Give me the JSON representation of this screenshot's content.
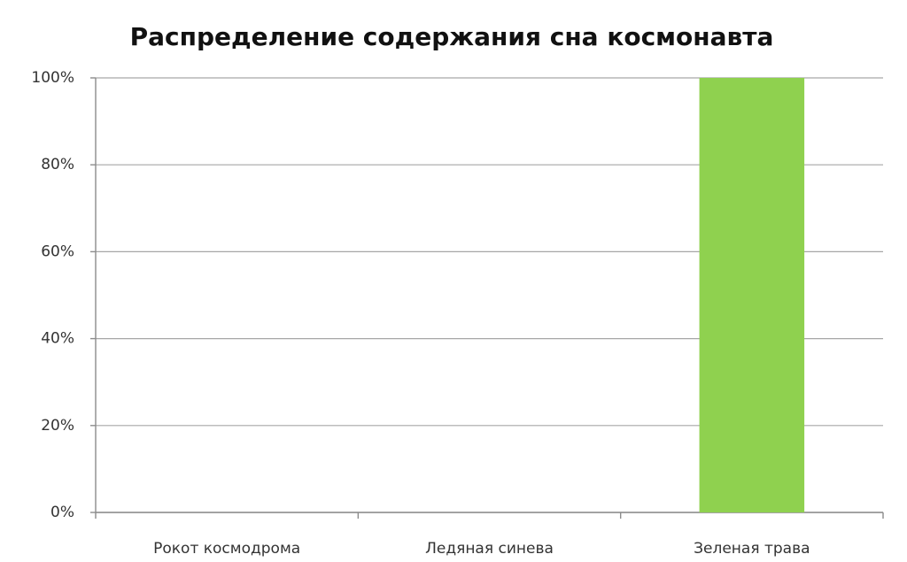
{
  "chart_data": {
    "type": "bar",
    "title": "Распределение содержания сна космонавта",
    "categories": [
      "Рокот космодрома",
      "Ледяная синева",
      "Зеленая трава"
    ],
    "values": [
      0,
      0,
      100
    ],
    "color": "#8fd14f",
    "ylim": [
      0,
      100
    ],
    "yticks": [
      {
        "value": 0,
        "label": "0%"
      },
      {
        "value": 20,
        "label": "20%"
      },
      {
        "value": 40,
        "label": "40%"
      },
      {
        "value": 60,
        "label": "60%"
      },
      {
        "value": 80,
        "label": "80%"
      },
      {
        "value": 100,
        "label": "100%"
      }
    ],
    "grid": true
  }
}
